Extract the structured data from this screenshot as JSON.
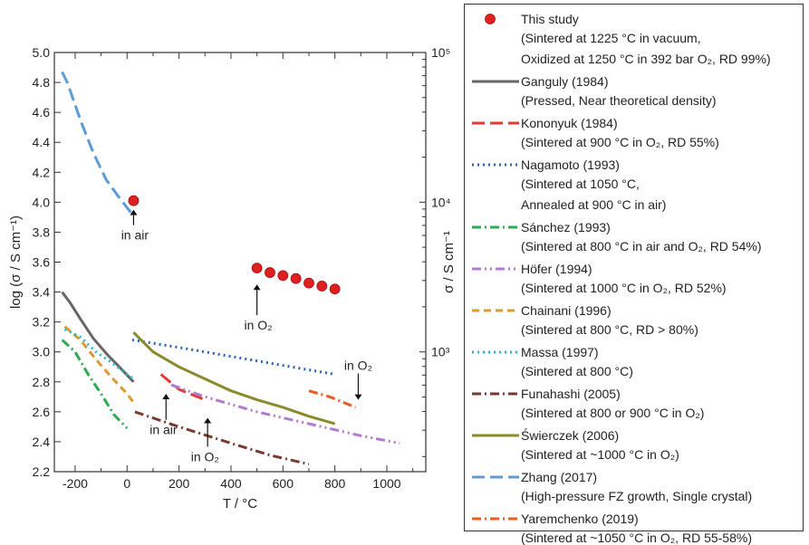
{
  "chart_data": {
    "type": "line",
    "xlabel": "T / °C",
    "ylabel_left": "log (σ / S cm⁻¹)",
    "ylabel_right": "σ / S cm⁻¹",
    "xlim": [
      -280,
      1150
    ],
    "ylim": [
      2.2,
      5.0
    ],
    "x_ticks": [
      -200,
      0,
      200,
      400,
      600,
      800,
      1000
    ],
    "y_ticks": [
      2.2,
      2.4,
      2.6,
      2.8,
      3.0,
      3.2,
      3.4,
      3.6,
      3.8,
      4.0,
      4.2,
      4.4,
      4.6,
      4.8,
      5.0
    ],
    "right_ticks": [
      {
        "label": "10³",
        "value": 3
      },
      {
        "label": "10⁴",
        "value": 4
      },
      {
        "label": "10⁵",
        "value": 5
      }
    ],
    "grid": false,
    "legend_position": "right",
    "series": [
      {
        "name": "This study",
        "style": "marker",
        "color": "#e02020",
        "points": [
          [
            25,
            4.01
          ],
          [
            500,
            3.56
          ],
          [
            550,
            3.53
          ],
          [
            600,
            3.51
          ],
          [
            650,
            3.49
          ],
          [
            700,
            3.46
          ],
          [
            750,
            3.44
          ],
          [
            800,
            3.42
          ]
        ]
      },
      {
        "name": "Ganguly (1984)",
        "style": "solid",
        "color": "#666666",
        "points": [
          [
            -250,
            3.4
          ],
          [
            -220,
            3.33
          ],
          [
            -180,
            3.22
          ],
          [
            -130,
            3.09
          ],
          [
            -80,
            2.99
          ],
          [
            -30,
            2.9
          ],
          [
            25,
            2.8
          ]
        ]
      },
      {
        "name": "Kononyuk (1984)",
        "style": "longdash",
        "color": "#e53935",
        "points": [
          [
            130,
            2.85
          ],
          [
            200,
            2.75
          ],
          [
            300,
            2.68
          ]
        ]
      },
      {
        "name": "Nagamoto (1993)",
        "style": "dot",
        "color": "#2d63b5",
        "points": [
          [
            20,
            3.08
          ],
          [
            200,
            3.03
          ],
          [
            400,
            2.97
          ],
          [
            600,
            2.91
          ],
          [
            800,
            2.85
          ]
        ]
      },
      {
        "name": "Sánchez (1993)",
        "style": "dashdot",
        "color": "#2eaa55",
        "points": [
          [
            -250,
            3.08
          ],
          [
            -200,
            3.0
          ],
          [
            -150,
            2.85
          ],
          [
            -100,
            2.72
          ],
          [
            -50,
            2.58
          ],
          [
            0,
            2.49
          ]
        ]
      },
      {
        "name": "Höfer (1994)",
        "style": "dashdotdot",
        "color": "#b07ad0",
        "points": [
          [
            170,
            2.78
          ],
          [
            300,
            2.7
          ],
          [
            500,
            2.6
          ],
          [
            700,
            2.52
          ],
          [
            900,
            2.44
          ],
          [
            1050,
            2.39
          ]
        ]
      },
      {
        "name": "Chainani (1996)",
        "style": "dash",
        "color": "#e0992e",
        "points": [
          [
            -240,
            3.17
          ],
          [
            -180,
            3.08
          ],
          [
            -120,
            2.95
          ],
          [
            -60,
            2.83
          ],
          [
            0,
            2.72
          ],
          [
            30,
            2.65
          ]
        ]
      },
      {
        "name": "Massa (1997)",
        "style": "dot",
        "color": "#27b8c8",
        "points": [
          [
            -240,
            3.15
          ],
          [
            -180,
            3.1
          ],
          [
            -120,
            3.0
          ],
          [
            -60,
            2.93
          ],
          [
            0,
            2.85
          ],
          [
            25,
            2.82
          ]
        ]
      },
      {
        "name": "Funahashi (2005)",
        "style": "dashdot",
        "color": "#7b3a30",
        "points": [
          [
            30,
            2.6
          ],
          [
            200,
            2.5
          ],
          [
            400,
            2.39
          ],
          [
            550,
            2.31
          ],
          [
            700,
            2.25
          ]
        ]
      },
      {
        "name": "Świerczek (2006)",
        "style": "solid",
        "color": "#8a8a2e",
        "points": [
          [
            25,
            3.13
          ],
          [
            100,
            3.0
          ],
          [
            200,
            2.9
          ],
          [
            300,
            2.82
          ],
          [
            400,
            2.74
          ],
          [
            500,
            2.68
          ],
          [
            600,
            2.63
          ],
          [
            700,
            2.57
          ],
          [
            800,
            2.52
          ]
        ]
      },
      {
        "name": "Zhang (2017)",
        "style": "longdash",
        "color": "#5a9bd8",
        "points": [
          [
            -250,
            4.87
          ],
          [
            -230,
            4.8
          ],
          [
            -180,
            4.55
          ],
          [
            -130,
            4.33
          ],
          [
            -80,
            4.15
          ],
          [
            -30,
            4.03
          ],
          [
            15,
            3.93
          ]
        ]
      },
      {
        "name": "Yaremchenko (2019)",
        "style": "dashdot",
        "color": "#ee5a20",
        "points": [
          [
            700,
            2.74
          ],
          [
            780,
            2.7
          ],
          [
            880,
            2.63
          ]
        ]
      }
    ],
    "annotations": [
      {
        "text": "in air",
        "x": 30,
        "y": 3.75,
        "arrow_to": [
          25,
          3.95
        ]
      },
      {
        "text": "in O₂",
        "x": 505,
        "y": 3.15,
        "arrow_to": [
          500,
          3.45
        ]
      },
      {
        "text": "in air",
        "x": 140,
        "y": 2.45,
        "arrow_to": [
          150,
          2.72
        ]
      },
      {
        "text": "in O₂",
        "x": 300,
        "y": 2.27,
        "arrow_to": [
          310,
          2.56
        ]
      },
      {
        "text": "in O₂",
        "x": 890,
        "y": 2.88,
        "arrow_to": [
          890,
          2.68
        ]
      }
    ]
  },
  "legend": [
    {
      "name": "This study",
      "notes": [
        "(Sintered at 1225 °C in vacuum,",
        "Oxidized at 1250 °C in 392 bar O₂, RD 99%)"
      ]
    },
    {
      "name": "Ganguly (1984)",
      "notes": [
        "(Pressed, Near theoretical density)"
      ]
    },
    {
      "name": "Kononyuk (1984)",
      "notes": [
        "(Sintered at 900 °C in O₂, RD 55%)"
      ]
    },
    {
      "name": "Nagamoto (1993)",
      "notes": [
        "(Sintered at 1050 °C,",
        "Annealed at 900 °C in air)"
      ]
    },
    {
      "name": "Sánchez (1993)",
      "notes": [
        "(Sintered at 800 °C in air and O₂, RD 54%)"
      ]
    },
    {
      "name": "Höfer (1994)",
      "notes": [
        "(Sintered at 1000 °C in O₂, RD 52%)"
      ]
    },
    {
      "name": "Chainani (1996)",
      "notes": [
        "(Sintered at 800 °C, RD > 80%)"
      ]
    },
    {
      "name": "Massa (1997)",
      "notes": [
        "(Sintered at 800 °C)"
      ]
    },
    {
      "name": "Funahashi (2005)",
      "notes": [
        "(Sintered at 800 or 900 °C in O₂)"
      ]
    },
    {
      "name": "Świerczek (2006)",
      "notes": [
        "(Sintered at ~1000 °C in O₂)"
      ]
    },
    {
      "name": "Zhang (2017)",
      "notes": [
        "(High-pressure FZ growth, Single crystal)"
      ]
    },
    {
      "name": "Yaremchenko (2019)",
      "notes": [
        "(Sintered at ~1050 °C in O₂, RD 55-58%)"
      ]
    }
  ]
}
